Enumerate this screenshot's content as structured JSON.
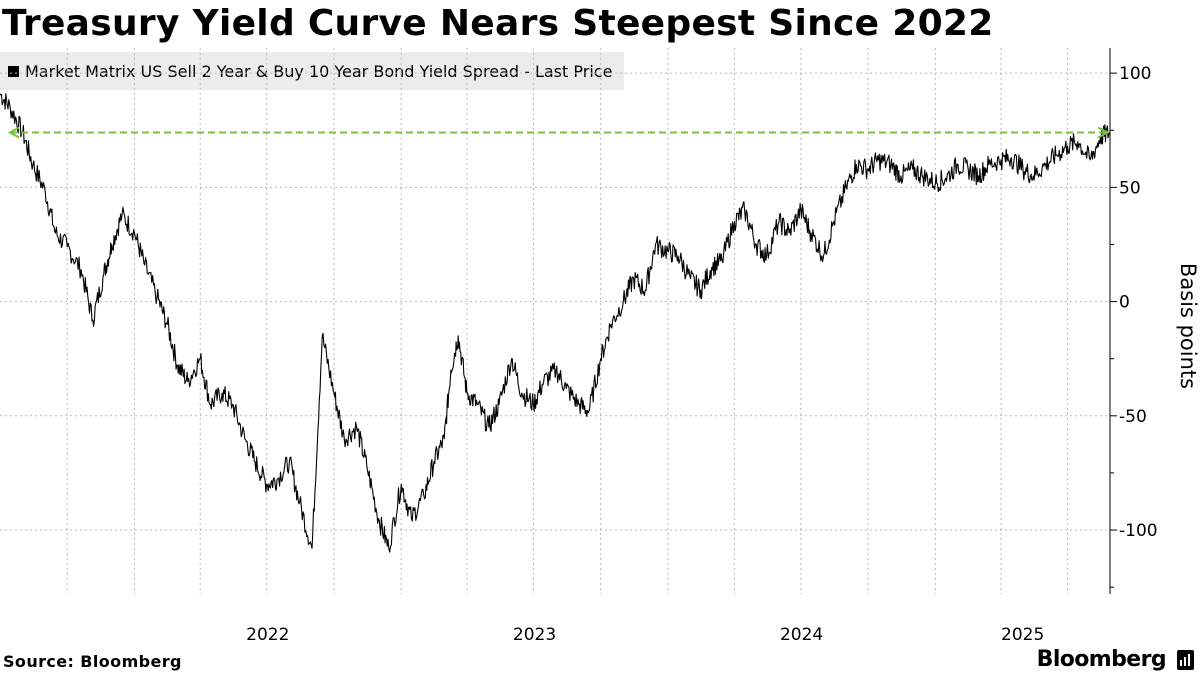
{
  "chart_data": {
    "type": "line",
    "title": "Treasury Yield Curve Nears Steepest Since 2022",
    "legend": [
      "Market Matrix US Sell 2 Year & Buy 10 Year Bond Yield Spread - Last Price"
    ],
    "ylabel": "Basis points",
    "xlabel": "",
    "ylim": [
      -128,
      111
    ],
    "yticks": [
      100,
      50,
      0,
      -50,
      -100
    ],
    "yaxis_side": "right",
    "xticks": [
      "2022",
      "2023",
      "2024",
      "2025"
    ],
    "xlim": [
      "2021-07-01",
      "2025-08-28"
    ],
    "grid": true,
    "reference_line": {
      "value": 74,
      "style": "dashed",
      "color": "#7ac143",
      "label": ""
    },
    "series": [
      {
        "color": "#000000",
        "x": [
          "2021-07-01",
          "2021-07-15",
          "2021-08-01",
          "2021-08-15",
          "2021-09-01",
          "2021-09-15",
          "2021-10-01",
          "2021-10-20",
          "2021-11-05",
          "2021-11-20",
          "2021-12-01",
          "2021-12-15",
          "2022-01-01",
          "2022-01-15",
          "2022-02-01",
          "2022-02-15",
          "2022-03-01",
          "2022-03-15",
          "2022-04-01",
          "2022-04-15",
          "2022-05-01",
          "2022-05-15",
          "2022-06-01",
          "2022-06-15",
          "2022-07-01",
          "2022-07-15",
          "2022-08-01",
          "2022-08-15",
          "2022-09-01",
          "2022-09-15",
          "2022-10-01",
          "2022-10-15",
          "2022-11-01",
          "2022-11-15",
          "2022-12-01",
          "2022-12-15",
          "2023-01-01",
          "2023-01-15",
          "2023-02-01",
          "2023-02-15",
          "2023-03-01",
          "2023-03-10",
          "2023-03-20",
          "2023-04-01",
          "2023-04-15",
          "2023-05-01",
          "2023-05-15",
          "2023-06-01",
          "2023-06-15",
          "2023-07-01",
          "2023-07-15",
          "2023-08-01",
          "2023-08-15",
          "2023-09-01",
          "2023-09-15",
          "2023-10-01",
          "2023-10-15",
          "2023-11-01",
          "2023-11-15",
          "2023-12-01",
          "2023-12-15",
          "2024-01-01",
          "2024-01-15",
          "2024-02-01",
          "2024-02-15",
          "2024-03-01",
          "2024-03-15",
          "2024-04-01",
          "2024-04-15",
          "2024-05-01",
          "2024-05-15",
          "2024-06-01",
          "2024-06-15",
          "2024-07-01",
          "2024-07-15",
          "2024-08-01",
          "2024-08-15",
          "2024-09-01",
          "2024-09-15",
          "2024-10-01",
          "2024-10-15",
          "2024-11-01",
          "2024-11-15",
          "2024-12-01",
          "2024-12-15",
          "2025-01-01",
          "2025-01-15",
          "2025-02-01",
          "2025-02-15",
          "2025-03-01",
          "2025-03-15",
          "2025-04-01",
          "2025-04-15",
          "2025-05-01",
          "2025-05-15",
          "2025-06-01",
          "2025-06-15",
          "2025-07-01",
          "2025-07-15",
          "2025-08-01",
          "2025-08-15",
          "2025-08-27"
        ],
        "y": [
          91,
          85,
          74,
          60,
          48,
          30,
          24,
          14,
          -8,
          12,
          25,
          38,
          30,
          16,
          2,
          -10,
          -28,
          -35,
          -25,
          -45,
          -40,
          -45,
          -60,
          -70,
          -80,
          -78,
          -70,
          -88,
          -108,
          -15,
          -40,
          -60,
          -55,
          -72,
          -95,
          -108,
          -80,
          -95,
          -85,
          -70,
          -60,
          -30,
          -15,
          -40,
          -45,
          -55,
          -45,
          -25,
          -40,
          -45,
          -35,
          -30,
          -38,
          -45,
          -48,
          -25,
          -10,
          0,
          10,
          5,
          25,
          22,
          20,
          10,
          5,
          15,
          18,
          35,
          40,
          25,
          20,
          35,
          30,
          40,
          30,
          20,
          35,
          50,
          60,
          58,
          62,
          60,
          55,
          58,
          55,
          52,
          54,
          60,
          58,
          55,
          60,
          62,
          63,
          58,
          55,
          60,
          64,
          68,
          70,
          62,
          72,
          74
        ]
      }
    ]
  },
  "footer": {
    "source": "Source: Bloomberg",
    "brand": "Bloomberg"
  }
}
